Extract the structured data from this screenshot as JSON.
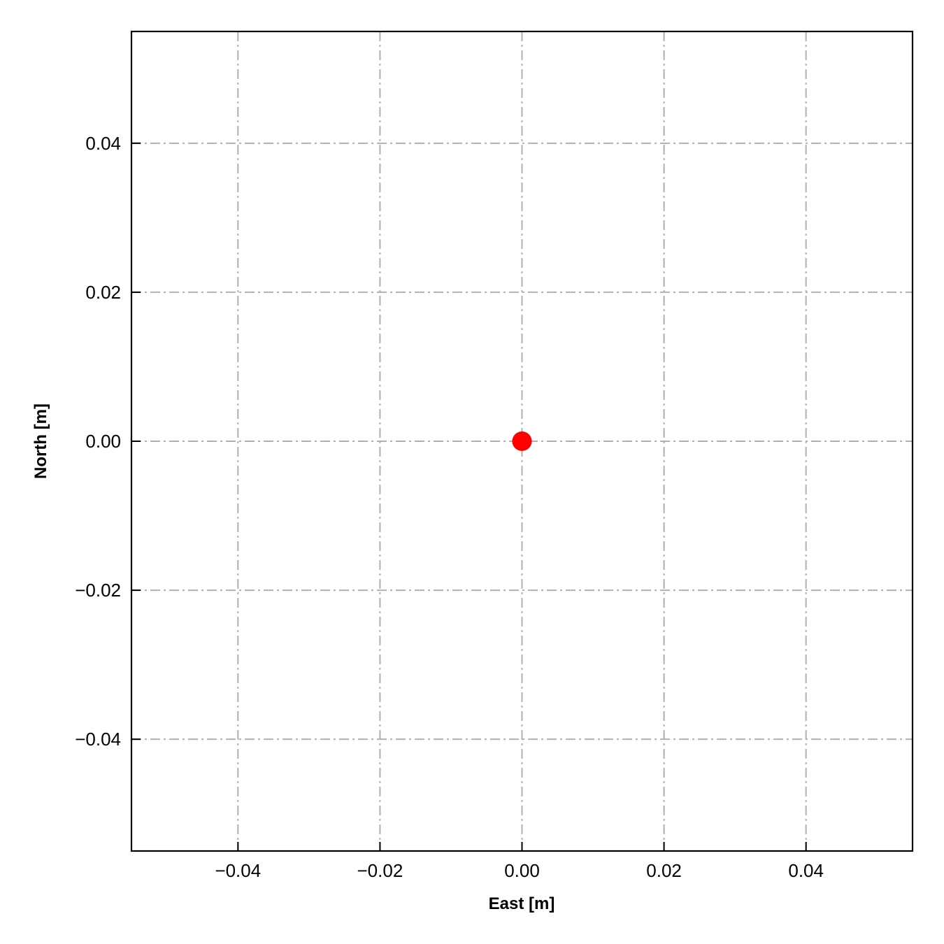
{
  "chart_data": {
    "type": "scatter",
    "title": "",
    "xlabel": "East [m]",
    "ylabel": "North [m]",
    "xlim": [
      -0.055,
      0.055
    ],
    "ylim": [
      -0.055,
      0.055
    ],
    "xticks": [
      -0.04,
      -0.02,
      0.0,
      0.02,
      0.04
    ],
    "yticks": [
      -0.04,
      -0.02,
      0.0,
      0.02,
      0.04
    ],
    "xtick_labels": [
      "−0.04",
      "−0.02",
      "0.00",
      "0.02",
      "0.04"
    ],
    "ytick_labels": [
      "−0.04",
      "−0.02",
      "0.00",
      "0.02",
      "0.04"
    ],
    "grid": true,
    "grid_style": "dash-dot",
    "grid_color": "#b0b0b0",
    "series": [
      {
        "x": [
          0.0
        ],
        "y": [
          0.0
        ],
        "color": "#ff0000",
        "marker": "circle"
      }
    ]
  }
}
